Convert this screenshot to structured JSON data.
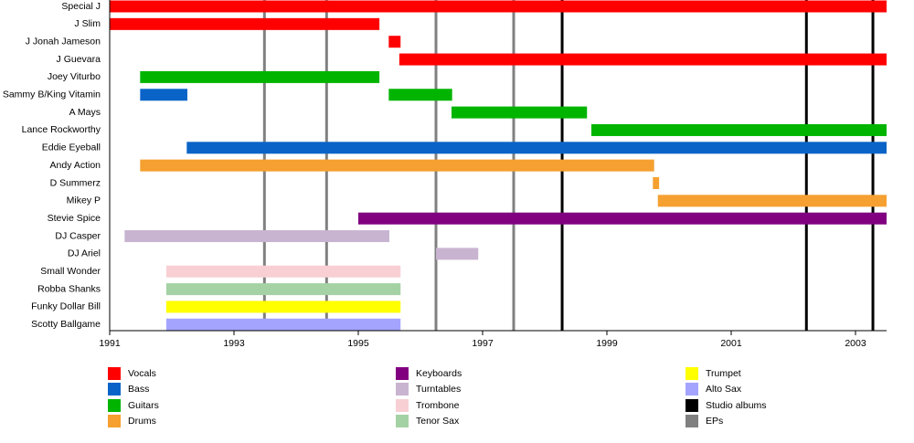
{
  "chart_data": {
    "type": "timeline",
    "categories": [
      "Special J",
      "J Slim",
      "J Jonah Jameson",
      "J Guevara",
      "Joey Viturbo",
      "Sammy B/King Vitamin",
      "A Mays",
      "Lance Rockworthy",
      "Eddie Eyeball",
      "Andy Action",
      "D Summerz",
      "Mikey P",
      "Stevie Spice",
      "DJ Casper",
      "DJ Ariel",
      "Small Wonder",
      "Robba Shanks",
      "Funky Dollar Bill",
      "Scotty Ballgame"
    ],
    "roles": [
      {
        "name": "Vocals",
        "color": "#ff0000"
      },
      {
        "name": "Bass",
        "color": "#0a64c8"
      },
      {
        "name": "Guitars",
        "color": "#00b400"
      },
      {
        "name": "Drums",
        "color": "#f5a030"
      },
      {
        "name": "Keyboards",
        "color": "#800080"
      },
      {
        "name": "Turntables",
        "color": "#c8b4d0"
      },
      {
        "name": "Trombone",
        "color": "#f8d0d4"
      },
      {
        "name": "Tenor Sax",
        "color": "#a4d2a4"
      },
      {
        "name": "Trumpet",
        "color": "#ffff00"
      },
      {
        "name": "Alto Sax",
        "color": "#a4a4ff"
      }
    ],
    "bars": [
      [
        {
          "role": "Vocals",
          "start": 1991,
          "end": 2003.5
        }
      ],
      [
        {
          "role": "Vocals",
          "start": 1991,
          "end": 1995.34
        }
      ],
      [
        {
          "role": "Vocals",
          "start": 1995.49,
          "end": 1995.68
        }
      ],
      [
        {
          "role": "Vocals",
          "start": 1995.66,
          "end": 2003.5
        }
      ],
      [
        {
          "role": "Guitars",
          "start": 1991.49,
          "end": 1995.34
        }
      ],
      [
        {
          "role": "Bass",
          "start": 1991.49,
          "end": 1992.25
        },
        {
          "role": "Guitars",
          "start": 1995.49,
          "end": 1996.51
        }
      ],
      [
        {
          "role": "Guitars",
          "start": 1996.5,
          "end": 1998.68
        }
      ],
      [
        {
          "role": "Guitars",
          "start": 1998.75,
          "end": 2003.5
        }
      ],
      [
        {
          "role": "Bass",
          "start": 1992.24,
          "end": 2003.5
        }
      ],
      [
        {
          "role": "Drums",
          "start": 1991.49,
          "end": 1999.76
        }
      ],
      [
        {
          "role": "Drums",
          "start": 1999.74,
          "end": 1999.84
        }
      ],
      [
        {
          "role": "Drums",
          "start": 1999.82,
          "end": 2003.5
        }
      ],
      [
        {
          "role": "Keyboards",
          "start": 1995.0,
          "end": 2003.5
        }
      ],
      [
        {
          "role": "Turntables",
          "start": 1991.24,
          "end": 1995.5
        }
      ],
      [
        {
          "role": "Turntables",
          "start": 1996.25,
          "end": 1996.93
        }
      ],
      [
        {
          "role": "Trombone",
          "start": 1991.91,
          "end": 1995.68
        }
      ],
      [
        {
          "role": "Tenor Sax",
          "start": 1991.91,
          "end": 1995.68
        }
      ],
      [
        {
          "role": "Trumpet",
          "start": 1991.91,
          "end": 1995.68
        }
      ],
      [
        {
          "role": "Alto Sax",
          "start": 1991.91,
          "end": 1995.68
        }
      ]
    ],
    "events": [
      {
        "name": "Studio albums",
        "color": "#000000",
        "x": [
          1998.28,
          2002.21,
          2003.28
        ]
      },
      {
        "name": "EPs",
        "color": "#808080",
        "x": [
          1993.49,
          1994.49,
          1996.25,
          1997.5
        ]
      }
    ],
    "xlim": [
      1991,
      2003.5
    ],
    "xticks": [
      1991,
      1993,
      1995,
      1997,
      1999,
      2001,
      2003
    ]
  }
}
